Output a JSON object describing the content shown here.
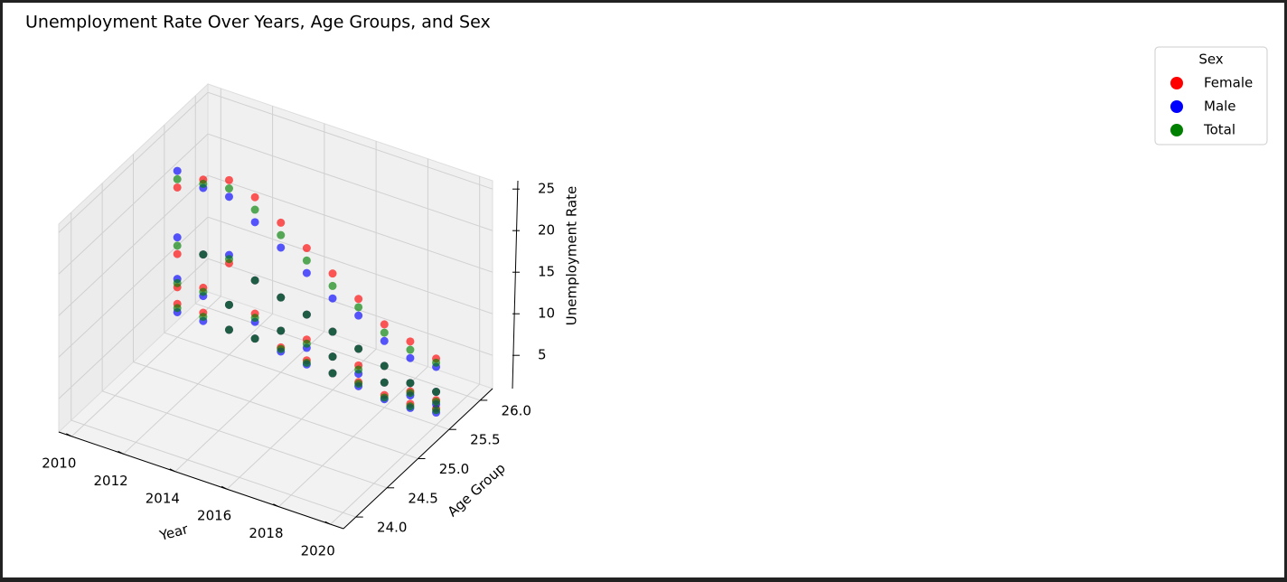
{
  "chart_data": {
    "type": "scatter3d",
    "title": "Unemployment Rate Over Years, Age Groups, and Sex",
    "xlabel": "Year",
    "ylabel": "Age Group",
    "zlabel": "Unemployment Rate",
    "legend_title": "Sex",
    "legend_position": "upper right",
    "xlim": [
      2009.5,
      2020.5
    ],
    "xticks": [
      2010,
      2012,
      2014,
      2016,
      2018,
      2020
    ],
    "ylim": [
      23.8,
      26.2
    ],
    "yticks": [
      {
        "value": 24,
        "label": "24.0"
      },
      24.5,
      {
        "value": 25,
        "label": "25.0"
      },
      25.5,
      {
        "value": 26,
        "label": "26.0"
      }
    ],
    "zlim": [
      1,
      26
    ],
    "zticks": [
      5,
      10,
      15,
      20,
      25
    ],
    "grid": true,
    "x": [
      2010,
      2010,
      2010,
      2010,
      2011,
      2011,
      2011,
      2011,
      2012,
      2012,
      2012,
      2012,
      2013,
      2013,
      2013,
      2013,
      2014,
      2014,
      2014,
      2014,
      2015,
      2015,
      2015,
      2015,
      2016,
      2016,
      2016,
      2016,
      2017,
      2017,
      2017,
      2017,
      2018,
      2018,
      2018,
      2018,
      2019,
      2019,
      2019,
      2019,
      2020,
      2020,
      2020,
      2020
    ],
    "y": [
      25.5,
      25.5,
      25.5,
      25.5,
      25.5,
      25.5,
      25.5,
      25.5,
      25.5,
      25.5,
      25.5,
      25.5,
      25.5,
      25.5,
      25.5,
      25.5,
      25.5,
      25.5,
      25.5,
      25.5,
      25.5,
      25.5,
      25.5,
      25.5,
      25.5,
      25.5,
      25.5,
      25.5,
      25.5,
      25.5,
      25.5,
      25.5,
      25.5,
      25.5,
      25.5,
      25.5,
      25.5,
      25.5,
      25.5,
      25.5,
      25.5,
      25.5,
      25.5,
      25.5
    ],
    "series": [
      {
        "name": "Female",
        "color": "#ff0000",
        "values": [
          19,
          11,
          7,
          5,
          21,
          12,
          8,
          5,
          22,
          12,
          7,
          4,
          21,
          11,
          7,
          4,
          19,
          10,
          6,
          4,
          17,
          9,
          6,
          3.5,
          15,
          8,
          5,
          3,
          13,
          7,
          5,
          3,
          11,
          6,
          4,
          2.5,
          10,
          5,
          4,
          2.5,
          9,
          5,
          4,
          3
        ]
      },
      {
        "name": "Male",
        "color": "#0000ff",
        "values": [
          21,
          13,
          8,
          4,
          20,
          12,
          7,
          4,
          20,
          13,
          7,
          4,
          18,
          11,
          6,
          4,
          16,
          10,
          6,
          3.5,
          14,
          9,
          5,
          3,
          12,
          8,
          5,
          3,
          11,
          7,
          4,
          2.5,
          9,
          6,
          4,
          2,
          8,
          5,
          3.5,
          2,
          8,
          5,
          3.5,
          2.5
        ]
      },
      {
        "name": "Total",
        "color": "#008000",
        "values": [
          20,
          12,
          7.5,
          4.5,
          20.5,
          12,
          7.5,
          4.5,
          21,
          12.5,
          7,
          4,
          19.5,
          11,
          6.5,
          4,
          17.5,
          10,
          6,
          3.8,
          15.5,
          9,
          5.5,
          3.2,
          13.5,
          8,
          5,
          3,
          12,
          7,
          4.5,
          2.8,
          10,
          6,
          4,
          2.2,
          9,
          5,
          3.8,
          2.2,
          8.5,
          5,
          3.8,
          2.8
        ]
      }
    ]
  }
}
